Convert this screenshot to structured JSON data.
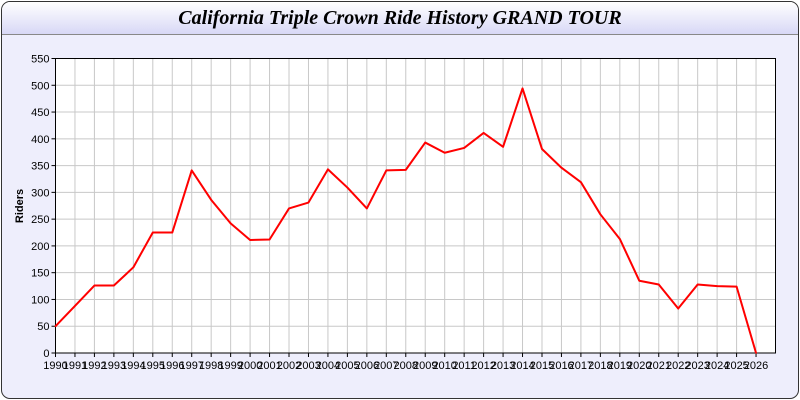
{
  "chart_data": {
    "type": "line",
    "title": "California Triple Crown Ride History GRAND TOUR",
    "xlabel": "",
    "ylabel": "Riders",
    "xlim": [
      1990,
      2027
    ],
    "ylim": [
      0,
      550
    ],
    "yticks": [
      0,
      50,
      100,
      150,
      200,
      250,
      300,
      350,
      400,
      450,
      500,
      550
    ],
    "grid": true,
    "line_color": "#ff0000",
    "x": [
      1990,
      1991,
      1992,
      1993,
      1994,
      1995,
      1996,
      1997,
      1998,
      1999,
      2000,
      2001,
      2002,
      2003,
      2004,
      2005,
      2006,
      2007,
      2008,
      2009,
      2010,
      2011,
      2012,
      2013,
      2014,
      2015,
      2016,
      2017,
      2018,
      2019,
      2020,
      2021,
      2022,
      2023,
      2024,
      2025,
      2026
    ],
    "values": [
      50,
      88,
      126,
      126,
      160,
      225,
      225,
      341,
      286,
      242,
      211,
      212,
      270,
      281,
      343,
      309,
      270,
      341,
      342,
      393,
      374,
      383,
      411,
      385,
      494,
      381,
      346,
      319,
      259,
      213,
      135,
      128,
      83,
      128,
      125,
      124,
      0
    ]
  }
}
